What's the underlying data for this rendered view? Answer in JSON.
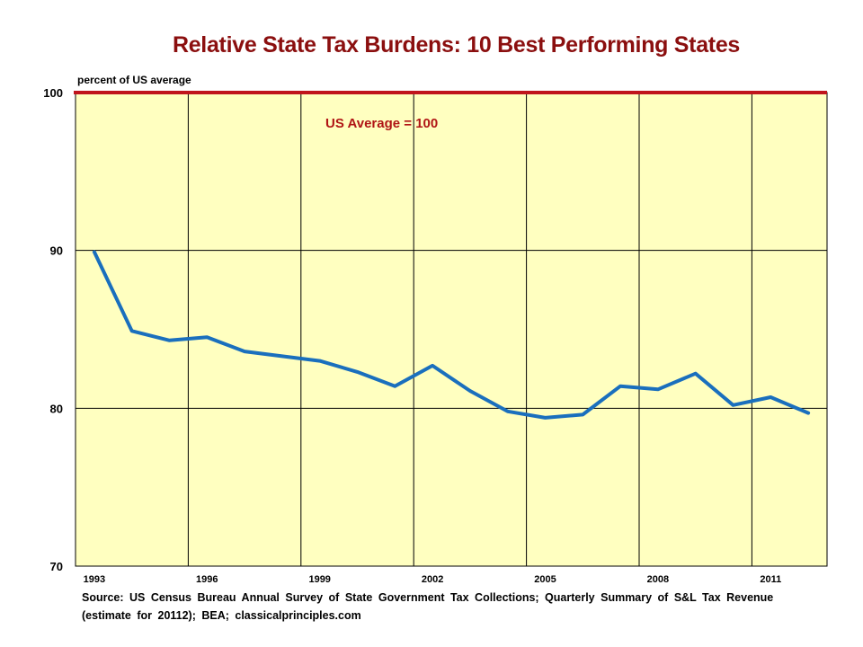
{
  "chart_data": {
    "type": "line",
    "title": "Relative State Tax Burdens: 10 Best Performing States",
    "ylabel": "percent  of US average",
    "source": "Source:  US Census Bureau Annual Survey of State Government Tax Collections;  Quarterly Summary of S&L Tax Revenue (estimate for 20112); BEA; classicalprinciples.com",
    "annotation": "US Average = 100",
    "reference_line": {
      "y": 100,
      "color": "#c0141c"
    },
    "xlim": [
      1992.5,
      2012.5
    ],
    "ylim": [
      70,
      100
    ],
    "x_ticks": [
      1993,
      1996,
      1999,
      2002,
      2005,
      2008,
      2011
    ],
    "x_tick_labels": [
      "1993",
      "1996",
      "1999",
      "2002",
      "2005",
      "2008",
      "2011"
    ],
    "x_gridlines": [
      1995.5,
      1998.5,
      2001.5,
      2004.5,
      2007.5,
      2010.5
    ],
    "y_ticks": [
      70,
      80,
      90,
      100
    ],
    "y_tick_labels": [
      "70",
      "80",
      "90",
      "100"
    ],
    "y_gridlines": [
      80,
      90
    ],
    "grid": true,
    "plot_background": "#ffffc0",
    "series": [
      {
        "color": "#1a6fbd",
        "x": [
          1993,
          1994,
          1995,
          1996,
          1997,
          1998,
          1999,
          2000,
          2001,
          2002,
          2003,
          2004,
          2005,
          2006,
          2007,
          2008,
          2009,
          2010,
          2011,
          2012
        ],
        "y": [
          89.9,
          84.9,
          84.3,
          84.5,
          83.6,
          83.3,
          83.0,
          82.3,
          81.4,
          82.7,
          81.1,
          79.8,
          79.4,
          79.6,
          81.4,
          81.2,
          82.2,
          80.2,
          80.7,
          79.7
        ]
      }
    ]
  }
}
